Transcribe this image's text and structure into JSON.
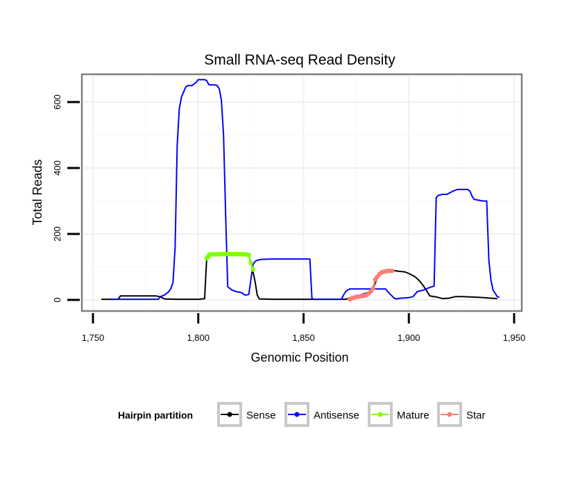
{
  "chart_data": {
    "type": "line",
    "title": "Small RNA-seq Read Density",
    "xlabel": "Genomic Position",
    "ylabel": "Total Reads",
    "xlim": [
      1750,
      1950
    ],
    "ylim": [
      0,
      680
    ],
    "x_ticks": [
      1750,
      1800,
      1850,
      1900,
      1950
    ],
    "x_tick_labels": [
      "1,750",
      "1,800",
      "1,850",
      "1,900",
      "1,950"
    ],
    "y_ticks": [
      0,
      200,
      400,
      600
    ],
    "y_tick_labels": [
      "0",
      "200",
      "400",
      "600"
    ],
    "grid": true,
    "legend": {
      "position": "bottom",
      "title": "Hairpin partition",
      "entries": [
        "Sense",
        "Antisense",
        "Mature",
        "Star"
      ]
    },
    "series": [
      {
        "name": "Sense",
        "color": "#000000",
        "points": [
          [
            1754,
            2
          ],
          [
            1762,
            2
          ],
          [
            1763,
            12
          ],
          [
            1768,
            12
          ],
          [
            1780,
            12
          ],
          [
            1782,
            9
          ],
          [
            1784,
            3
          ],
          [
            1790,
            2
          ],
          [
            1800,
            2
          ],
          [
            1802,
            3
          ],
          [
            1803,
            4
          ],
          [
            1804,
            126
          ],
          [
            1805,
            135
          ],
          [
            1808,
            137
          ],
          [
            1815,
            138
          ],
          [
            1820,
            138
          ],
          [
            1824,
            136
          ],
          [
            1825,
            115
          ],
          [
            1826,
            85
          ],
          [
            1827,
            55
          ],
          [
            1828,
            15
          ],
          [
            1829,
            3
          ],
          [
            1835,
            2
          ],
          [
            1850,
            2
          ],
          [
            1870,
            2
          ],
          [
            1882,
            25
          ],
          [
            1883,
            35
          ],
          [
            1885,
            65
          ],
          [
            1886,
            78
          ],
          [
            1888,
            84
          ],
          [
            1889,
            87
          ],
          [
            1890,
            88
          ],
          [
            1892,
            90
          ],
          [
            1895,
            87
          ],
          [
            1898,
            85
          ],
          [
            1900,
            80
          ],
          [
            1903,
            70
          ],
          [
            1905,
            58
          ],
          [
            1907,
            42
          ],
          [
            1909,
            22
          ],
          [
            1910,
            12
          ],
          [
            1913,
            9
          ],
          [
            1916,
            4
          ],
          [
            1919,
            5
          ],
          [
            1922,
            10
          ],
          [
            1925,
            10
          ],
          [
            1933,
            8
          ],
          [
            1942,
            4
          ]
        ]
      },
      {
        "name": "Antisense",
        "color": "#0000ff",
        "points": [
          [
            1758,
            2
          ],
          [
            1781,
            2
          ],
          [
            1782,
            10
          ],
          [
            1784,
            15
          ],
          [
            1786,
            25
          ],
          [
            1787,
            35
          ],
          [
            1788,
            52
          ],
          [
            1789,
            160
          ],
          [
            1790,
            470
          ],
          [
            1791,
            580
          ],
          [
            1792,
            615
          ],
          [
            1793,
            630
          ],
          [
            1794,
            645
          ],
          [
            1795,
            650
          ],
          [
            1797,
            650
          ],
          [
            1798,
            655
          ],
          [
            1799,
            660
          ],
          [
            1800,
            668
          ],
          [
            1803,
            668
          ],
          [
            1804,
            665
          ],
          [
            1805,
            653
          ],
          [
            1806,
            652
          ],
          [
            1808,
            652
          ],
          [
            1809,
            650
          ],
          [
            1810,
            640
          ],
          [
            1811,
            605
          ],
          [
            1812,
            500
          ],
          [
            1813,
            260
          ],
          [
            1814,
            40
          ],
          [
            1815,
            35
          ],
          [
            1816,
            30
          ],
          [
            1818,
            25
          ],
          [
            1820,
            23
          ],
          [
            1821,
            20
          ],
          [
            1822,
            15
          ],
          [
            1823,
            15
          ],
          [
            1824,
            17
          ],
          [
            1826,
            107
          ],
          [
            1827,
            117
          ],
          [
            1828,
            120
          ],
          [
            1830,
            123
          ],
          [
            1835,
            124
          ],
          [
            1845,
            124
          ],
          [
            1853,
            124
          ],
          [
            1854,
            5
          ],
          [
            1855,
            2
          ],
          [
            1868,
            2
          ],
          [
            1869,
            15
          ],
          [
            1870,
            25
          ],
          [
            1871,
            30
          ],
          [
            1872,
            33
          ],
          [
            1876,
            33
          ],
          [
            1885,
            33
          ],
          [
            1889,
            33
          ],
          [
            1890,
            25
          ],
          [
            1891,
            18
          ],
          [
            1892,
            12
          ],
          [
            1893,
            5
          ],
          [
            1894,
            3
          ],
          [
            1896,
            5
          ],
          [
            1900,
            7
          ],
          [
            1902,
            10
          ],
          [
            1904,
            25
          ],
          [
            1907,
            30
          ],
          [
            1910,
            38
          ],
          [
            1911,
            40
          ],
          [
            1912,
            42
          ],
          [
            1913,
            310
          ],
          [
            1914,
            317
          ],
          [
            1916,
            320
          ],
          [
            1918,
            320
          ],
          [
            1921,
            330
          ],
          [
            1923,
            335
          ],
          [
            1928,
            335
          ],
          [
            1929,
            330
          ],
          [
            1930,
            315
          ],
          [
            1931,
            305
          ],
          [
            1935,
            300
          ],
          [
            1937,
            300
          ],
          [
            1938,
            120
          ],
          [
            1939,
            60
          ],
          [
            1940,
            30
          ],
          [
            1941,
            20
          ],
          [
            1942,
            10
          ],
          [
            1943,
            8
          ]
        ]
      },
      {
        "name": "Mature",
        "color": "#7fff00",
        "points": [
          [
            1804,
            126
          ],
          [
            1804.5,
            130
          ],
          [
            1805,
            135
          ],
          [
            1805.5,
            137
          ],
          [
            1806,
            138
          ],
          [
            1807,
            138
          ],
          [
            1808,
            138
          ],
          [
            1809,
            138
          ],
          [
            1810,
            139
          ],
          [
            1811,
            139
          ],
          [
            1812,
            139
          ],
          [
            1813,
            139
          ],
          [
            1814,
            139
          ],
          [
            1815,
            139
          ],
          [
            1816,
            139
          ],
          [
            1817,
            139
          ],
          [
            1818,
            139
          ],
          [
            1819,
            139
          ],
          [
            1820,
            139
          ],
          [
            1821,
            138
          ],
          [
            1822,
            138
          ],
          [
            1823,
            138
          ],
          [
            1824,
            136
          ],
          [
            1825,
            112
          ],
          [
            1826,
            92
          ]
        ]
      },
      {
        "name": "Star",
        "color": "#fa8072",
        "points": [
          [
            1872,
            2
          ],
          [
            1873,
            5
          ],
          [
            1874,
            7
          ],
          [
            1875,
            9
          ],
          [
            1876,
            10
          ],
          [
            1877,
            11
          ],
          [
            1878,
            12
          ],
          [
            1879,
            13
          ],
          [
            1880,
            15
          ],
          [
            1881,
            20
          ],
          [
            1882,
            26
          ],
          [
            1883,
            35
          ],
          [
            1884,
            62
          ],
          [
            1885,
            70
          ],
          [
            1886,
            78
          ],
          [
            1887,
            83
          ],
          [
            1888,
            85
          ],
          [
            1889,
            87
          ],
          [
            1890,
            88
          ],
          [
            1891,
            88
          ],
          [
            1892,
            88
          ]
        ]
      }
    ]
  }
}
